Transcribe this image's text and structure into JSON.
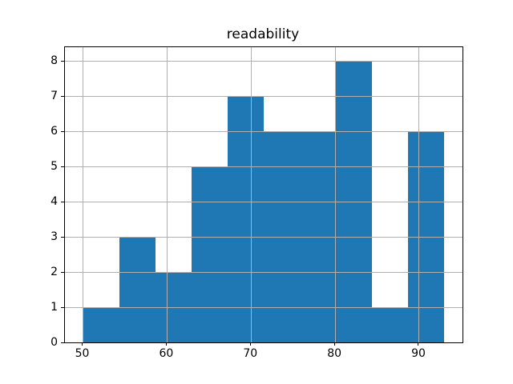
{
  "chart_data": {
    "type": "bar",
    "title": "readability",
    "xlabel": "",
    "ylabel": "",
    "bin_edges": [
      50,
      54.3,
      58.6,
      62.9,
      67.2,
      71.5,
      75.8,
      80.1,
      84.4,
      88.7,
      93
    ],
    "counts": [
      1,
      3,
      2,
      5,
      7,
      6,
      6,
      8,
      1,
      6
    ],
    "xticks": [
      50,
      60,
      70,
      80,
      90
    ],
    "yticks": [
      0,
      1,
      2,
      3,
      4,
      5,
      6,
      7,
      8
    ],
    "xlim": [
      47.85,
      95.15
    ],
    "ylim": [
      0,
      8.4
    ],
    "bar_color": "#1f77b4",
    "grid": "on",
    "grid_color": "#b0b0b0",
    "grid_above_bars": true,
    "spine_color": "#000000",
    "legend": "none"
  }
}
